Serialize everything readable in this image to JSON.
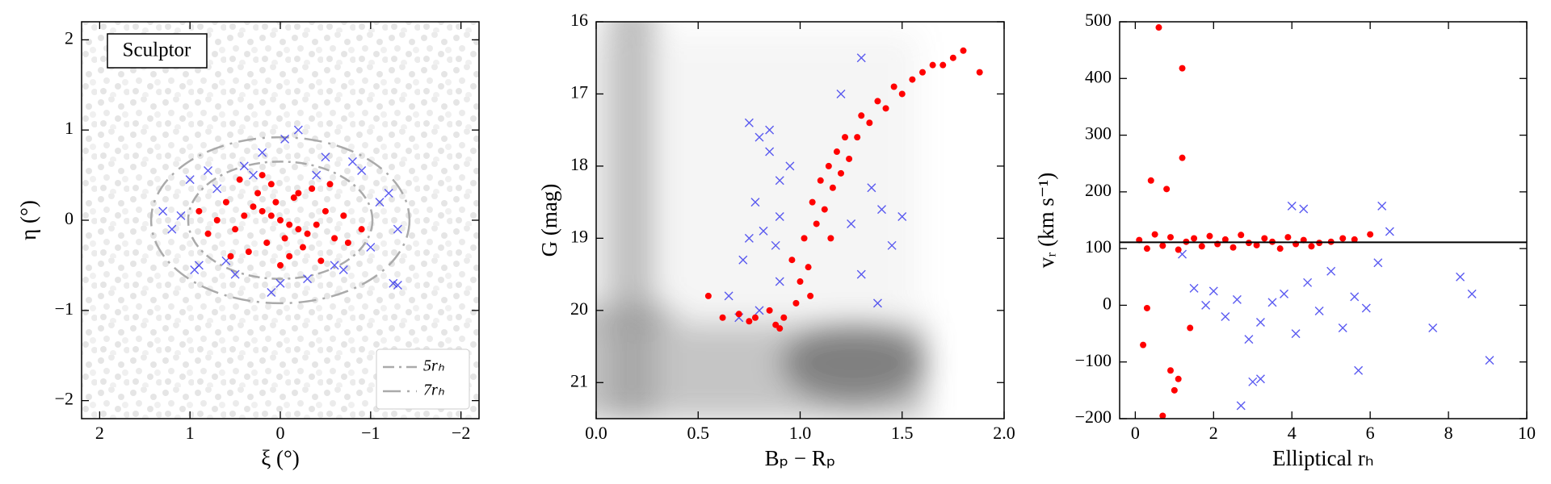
{
  "chart_data": [
    {
      "type": "scatter",
      "annotation": "Sculptor",
      "xlabel": "ξ (°)",
      "ylabel": "η (°)",
      "xlim": [
        2.2,
        -2.2
      ],
      "ylim": [
        -2.2,
        2.2
      ],
      "xticks": [
        2,
        1,
        0,
        {
          "value": -1,
          "label": "−1"
        },
        {
          "value": -2,
          "label": "−2"
        }
      ],
      "yticks": [
        {
          "value": -2,
          "label": "−2"
        },
        {
          "value": -1,
          "label": "−1"
        },
        0,
        1,
        2
      ],
      "legend": "lower right",
      "ellipses": [
        {
          "name": "5rₕ",
          "a": 1.02,
          "b": 0.65,
          "dash": "dashdot",
          "color": "#aaaaaa"
        },
        {
          "name": "7rₕ",
          "a": 1.43,
          "b": 0.92,
          "dash": "longdash",
          "color": "#aaaaaa"
        }
      ],
      "series": [
        {
          "color": "#3333ee",
          "marker": "x",
          "x": [
            1.3,
            1.2,
            1.0,
            0.9,
            0.8,
            0.6,
            0.4,
            0.2,
            0.0,
            -0.2,
            -0.4,
            -0.6,
            -0.8,
            -1.0,
            -1.2,
            -1.3,
            -1.25,
            -1.3,
            1.1,
            0.7,
            0.5,
            -0.5,
            -0.7,
            -0.9,
            0.3,
            -0.3,
            0.1,
            0.95,
            -1.1,
            -0.05
          ],
          "values": [
            0.1,
            -0.1,
            0.45,
            -0.5,
            0.55,
            -0.45,
            0.6,
            0.75,
            -0.7,
            1.0,
            0.5,
            -0.5,
            0.65,
            -0.3,
            0.3,
            -0.1,
            -0.7,
            -0.72,
            0.05,
            0.35,
            -0.6,
            0.7,
            -0.55,
            0.55,
            0.5,
            -0.65,
            -0.8,
            -0.55,
            0.2,
            0.9
          ]
        },
        {
          "color": "#ff0000",
          "marker": "o",
          "x": [
            0,
            0.1,
            -0.1,
            0.2,
            -0.2,
            0.05,
            -0.05,
            0.3,
            -0.3,
            0.15,
            -0.15,
            0.4,
            -0.4,
            0.25,
            -0.25,
            0.5,
            -0.5,
            0.6,
            -0.6,
            0.1,
            -0.1,
            0.35,
            -0.35,
            0.7,
            -0.7,
            0.8,
            -0.75,
            0.45,
            -0.45,
            0.0,
            0.2,
            -0.2,
            0.9,
            -0.9,
            0.55,
            -0.55
          ],
          "values": [
            0,
            0.05,
            -0.05,
            0.1,
            -0.1,
            0.2,
            -0.2,
            0.15,
            -0.15,
            -0.25,
            0.25,
            0.05,
            -0.05,
            0.3,
            -0.3,
            -0.1,
            0.1,
            0.2,
            -0.2,
            0.4,
            -0.4,
            -0.35,
            0.35,
            0.0,
            0.05,
            -0.15,
            -0.25,
            0.45,
            -0.45,
            -0.5,
            0.5,
            0.3,
            0.1,
            -0.1,
            -0.4,
            0.4
          ]
        }
      ]
    },
    {
      "type": "scatter",
      "xlabel": "Bₚ − Rₚ",
      "ylabel": "G (mag)",
      "xlim": [
        0,
        2
      ],
      "ylim": [
        21.5,
        16
      ],
      "xticks": [
        {
          "value": 0,
          "label": "0.0"
        },
        0.5,
        {
          "value": 1,
          "label": "1.0"
        },
        1.5,
        {
          "value": 2,
          "label": "2.0"
        }
      ],
      "yticks": [
        16,
        17,
        18,
        19,
        20,
        21
      ],
      "series": [
        {
          "color": "#3333ee",
          "marker": "x",
          "x": [
            0.75,
            0.8,
            0.85,
            0.9,
            0.78,
            0.82,
            0.88,
            0.95,
            0.72,
            0.65,
            0.8,
            0.9,
            0.85,
            1.3,
            1.35,
            1.4,
            1.45,
            1.25,
            1.3,
            1.38,
            0.7,
            1.2,
            0.9,
            0.75,
            1.5
          ],
          "values": [
            17.4,
            17.6,
            17.8,
            18.2,
            18.5,
            18.9,
            19.1,
            18.0,
            19.3,
            19.8,
            20.0,
            19.6,
            17.5,
            16.5,
            18.3,
            18.6,
            19.1,
            18.8,
            19.5,
            19.9,
            20.1,
            17.0,
            18.7,
            19.0,
            18.7
          ]
        },
        {
          "color": "#ff0000",
          "marker": "o",
          "x": [
            0.55,
            0.62,
            0.7,
            0.78,
            0.85,
            0.92,
            0.98,
            0.75,
            0.88,
            1.0,
            0.96,
            1.04,
            1.02,
            1.08,
            1.06,
            1.12,
            1.1,
            1.16,
            1.14,
            1.2,
            1.18,
            1.24,
            1.22,
            1.28,
            1.3,
            1.34,
            1.38,
            1.42,
            1.46,
            1.5,
            1.55,
            1.6,
            1.65,
            1.7,
            1.75,
            1.8,
            1.88,
            1.05,
            1.15,
            0.9
          ],
          "values": [
            19.8,
            20.1,
            20.05,
            20.1,
            20.0,
            20.1,
            19.9,
            20.15,
            20.2,
            19.6,
            19.3,
            19.4,
            19.0,
            18.8,
            18.5,
            18.6,
            18.2,
            18.3,
            18.0,
            18.1,
            17.8,
            17.9,
            17.6,
            17.6,
            17.3,
            17.4,
            17.1,
            17.2,
            16.9,
            17.0,
            16.8,
            16.7,
            16.6,
            16.6,
            16.5,
            16.4,
            16.7,
            19.8,
            19.0,
            20.25
          ]
        }
      ]
    },
    {
      "type": "scatter",
      "xlabel": "Elliptical rₕ",
      "ylabel": "vᵣ (km s⁻¹)",
      "xlim": [
        -0.4,
        10
      ],
      "ylim": [
        -200,
        500
      ],
      "xticks": [
        0,
        2,
        4,
        6,
        8,
        10
      ],
      "yticks": [
        {
          "value": -200,
          "label": "−200"
        },
        {
          "value": -100,
          "label": "−100"
        },
        0,
        100,
        200,
        300,
        400,
        500
      ],
      "hline": 111,
      "series": [
        {
          "color": "#3333ee",
          "marker": "x",
          "x": [
            1.2,
            1.5,
            1.8,
            2.0,
            2.3,
            2.6,
            2.9,
            3.2,
            3.5,
            3.8,
            4.1,
            4.4,
            4.7,
            5.0,
            5.3,
            5.6,
            5.9,
            6.2,
            6.5,
            4.0,
            4.3,
            6.3,
            7.6,
            8.3,
            8.6,
            9.05,
            3.0,
            2.7,
            3.2,
            5.7
          ],
          "values": [
            90,
            30,
            0,
            25,
            -20,
            10,
            -60,
            -30,
            5,
            20,
            -50,
            40,
            -10,
            60,
            -40,
            15,
            -5,
            75,
            130,
            175,
            170,
            175,
            -40,
            50,
            20,
            -97,
            -135,
            -177,
            -130,
            -115
          ]
        },
        {
          "color": "#ff0000",
          "marker": "o",
          "x": [
            0.1,
            0.3,
            0.5,
            0.7,
            0.9,
            1.1,
            1.3,
            1.5,
            1.7,
            1.9,
            2.1,
            2.3,
            2.5,
            2.7,
            2.9,
            3.1,
            3.3,
            3.5,
            3.7,
            3.9,
            4.1,
            4.3,
            4.5,
            4.7,
            5.0,
            5.3,
            5.6,
            6.0,
            0.6,
            1.2,
            1.2,
            0.4,
            0.8,
            1.0,
            0.2,
            0.9,
            0.3,
            1.1,
            0.7,
            1.4
          ],
          "values": [
            115,
            100,
            125,
            105,
            120,
            98,
            112,
            118,
            104,
            122,
            108,
            116,
            102,
            124,
            110,
            106,
            118,
            112,
            100,
            120,
            108,
            115,
            104,
            110,
            112,
            118,
            116,
            125,
            490,
            418,
            260,
            220,
            205,
            -150,
            -70,
            -115,
            -5,
            -130,
            -195,
            -40
          ]
        }
      ]
    }
  ]
}
